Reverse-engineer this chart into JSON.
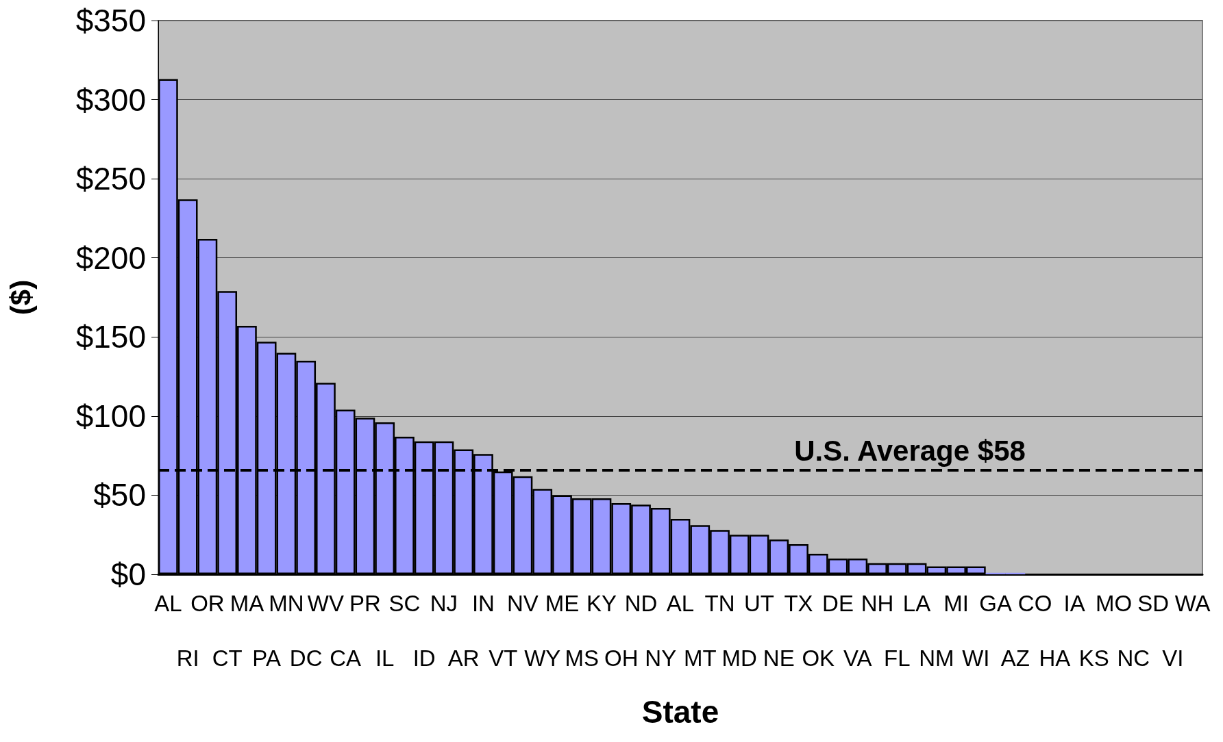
{
  "chart_data": {
    "type": "bar",
    "xlabel": "State",
    "ylabel": "($)",
    "categories": [
      "AL",
      "RI",
      "OR",
      "CT",
      "MA",
      "PA",
      "MN",
      "DC",
      "WV",
      "CA",
      "PR",
      "IL",
      "SC",
      "ID",
      "NJ",
      "AR",
      "IN",
      "VT",
      "NV",
      "WY",
      "ME",
      "MS",
      "KY",
      "OH",
      "ND",
      "NY",
      "AL",
      "MT",
      "TN",
      "MD",
      "UT",
      "NE",
      "TX",
      "OK",
      "DE",
      "VA",
      "NH",
      "FL",
      "LA",
      "NM",
      "MI",
      "WI",
      "GA",
      "AZ",
      "CO",
      "HA",
      "IA",
      "KS",
      "MO",
      "NC",
      "SD",
      "VI",
      "WA"
    ],
    "values": [
      313,
      237,
      212,
      179,
      157,
      147,
      140,
      135,
      121,
      104,
      99,
      96,
      87,
      84,
      84,
      79,
      76,
      65,
      62,
      54,
      50,
      48,
      48,
      45,
      44,
      42,
      35,
      31,
      28,
      25,
      25,
      22,
      19,
      13,
      10,
      10,
      7,
      7,
      7,
      5,
      5,
      5,
      1,
      1,
      0,
      0,
      0,
      0,
      0,
      0,
      0,
      0,
      0
    ],
    "color": "#9999ff",
    "ylim": [
      0,
      350
    ],
    "yticks": [
      {
        "value": 0,
        "label": "$0"
      },
      {
        "value": 50,
        "label": "$50"
      },
      {
        "value": 100,
        "label": "$100"
      },
      {
        "value": 150,
        "label": "$150"
      },
      {
        "value": 200,
        "label": "$200"
      },
      {
        "value": 250,
        "label": "$250"
      },
      {
        "value": 300,
        "label": "$300"
      },
      {
        "value": 350,
        "label": "$350"
      }
    ],
    "grid": "y",
    "ref_lines": [
      {
        "axis": "y",
        "value": 66,
        "label": "U.S. Average $58",
        "color": "#000000",
        "line_style": "dashed"
      }
    ]
  }
}
